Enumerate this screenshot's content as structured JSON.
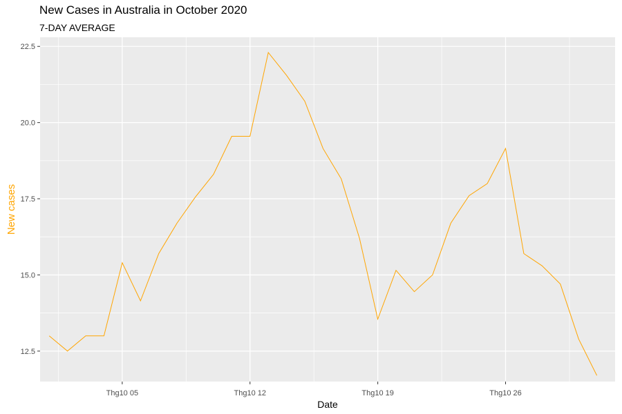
{
  "chart_data": {
    "type": "line",
    "title": "New Cases in Australia in October 2020",
    "subtitle": "7-DAY AVERAGE",
    "xlabel": "Date",
    "ylabel": "New cases",
    "x_tick_labels": [
      "Thg10 05",
      "Thg10 12",
      "Thg10 19",
      "Thg10 26"
    ],
    "x_tick_days": [
      5,
      12,
      19,
      26
    ],
    "y_ticks": [
      12.5,
      15.0,
      17.5,
      20.0,
      22.5
    ],
    "y_tick_labels": [
      "12.5",
      "15.0",
      "17.5",
      "20.0",
      "22.5"
    ],
    "xlim": [
      0.5,
      32
    ],
    "ylim": [
      11.5,
      22.8
    ],
    "grid": true,
    "colors": {
      "line": "#FFA500",
      "ylabel": "#FFA500",
      "panel": "#EBEBEB",
      "grid": "#FFFFFF"
    },
    "series": [
      {
        "x": [
          "2020-10-01",
          "2020-10-02",
          "2020-10-03",
          "2020-10-04",
          "2020-10-05",
          "2020-10-06",
          "2020-10-07",
          "2020-10-08",
          "2020-10-09",
          "2020-10-10",
          "2020-10-11",
          "2020-10-12",
          "2020-10-13",
          "2020-10-14",
          "2020-10-15",
          "2020-10-16",
          "2020-10-17",
          "2020-10-18",
          "2020-10-19",
          "2020-10-20",
          "2020-10-21",
          "2020-10-22",
          "2020-10-23",
          "2020-10-24",
          "2020-10-25",
          "2020-10-26",
          "2020-10-27",
          "2020-10-28",
          "2020-10-29",
          "2020-10-30",
          "2020-10-31"
        ],
        "values": [
          13.0,
          12.5,
          13.0,
          13.0,
          15.4,
          14.15,
          15.7,
          16.7,
          17.55,
          18.3,
          19.55,
          19.55,
          22.3,
          21.55,
          20.7,
          19.15,
          18.15,
          16.2,
          13.55,
          15.15,
          14.45,
          15.0,
          16.7,
          17.6,
          18.0,
          19.15,
          15.7,
          15.3,
          14.7,
          12.9,
          11.7
        ]
      }
    ]
  }
}
